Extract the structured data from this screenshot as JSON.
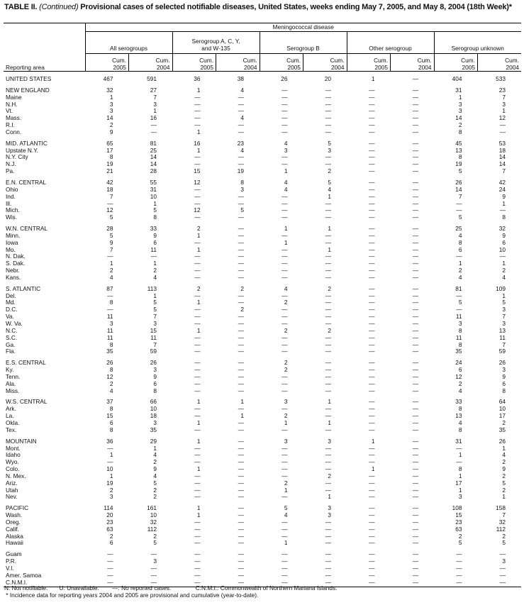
{
  "title": {
    "prefix": "TABLE II. ",
    "continued": "(Continued)",
    "text": " Provisional cases of selected notifiable diseases, United States, weeks ending May 7, 2005, and May 8, 2004 (18th Week)*"
  },
  "header": {
    "disease": "Meningococcal disease",
    "reporting_area": "Reporting area",
    "groups": [
      "All serogroups",
      "Serogroup A, C, Y, and W-135",
      "Serogroup B",
      "Other serogroup",
      "Serogroup unknown"
    ],
    "cum_labels": [
      "Cum. 2005",
      "Cum. 2004"
    ]
  },
  "sections": [
    [
      [
        "UNITED STATES",
        "467",
        "591",
        "36",
        "38",
        "26",
        "20",
        "1",
        "—",
        "404",
        "533"
      ]
    ],
    [
      [
        "NEW ENGLAND",
        "32",
        "27",
        "1",
        "4",
        "—",
        "—",
        "—",
        "—",
        "31",
        "23"
      ],
      [
        "Maine",
        "1",
        "7",
        "—",
        "—",
        "—",
        "—",
        "—",
        "—",
        "1",
        "7"
      ],
      [
        "N.H.",
        "3",
        "3",
        "—",
        "—",
        "—",
        "—",
        "—",
        "—",
        "3",
        "3"
      ],
      [
        "Vt.",
        "3",
        "1",
        "—",
        "—",
        "—",
        "—",
        "—",
        "—",
        "3",
        "1"
      ],
      [
        "Mass.",
        "14",
        "16",
        "—",
        "4",
        "—",
        "—",
        "—",
        "—",
        "14",
        "12"
      ],
      [
        "R.I.",
        "2",
        "—",
        "—",
        "—",
        "—",
        "—",
        "—",
        "—",
        "2",
        "—"
      ],
      [
        "Conn.",
        "9",
        "—",
        "1",
        "—",
        "—",
        "—",
        "—",
        "—",
        "8",
        "—"
      ]
    ],
    [
      [
        "MID. ATLANTIC",
        "65",
        "81",
        "16",
        "23",
        "4",
        "5",
        "—",
        "—",
        "45",
        "53"
      ],
      [
        "Upstate N.Y.",
        "17",
        "25",
        "1",
        "4",
        "3",
        "3",
        "—",
        "—",
        "13",
        "18"
      ],
      [
        "N.Y. City",
        "8",
        "14",
        "—",
        "—",
        "—",
        "—",
        "—",
        "—",
        "8",
        "14"
      ],
      [
        "N.J.",
        "19",
        "14",
        "—",
        "—",
        "—",
        "—",
        "—",
        "—",
        "19",
        "14"
      ],
      [
        "Pa.",
        "21",
        "28",
        "15",
        "19",
        "1",
        "2",
        "—",
        "—",
        "5",
        "7"
      ]
    ],
    [
      [
        "E.N. CENTRAL",
        "42",
        "55",
        "12",
        "8",
        "4",
        "5",
        "—",
        "—",
        "26",
        "42"
      ],
      [
        "Ohio",
        "18",
        "31",
        "—",
        "3",
        "4",
        "4",
        "—",
        "—",
        "14",
        "24"
      ],
      [
        "Ind.",
        "7",
        "10",
        "—",
        "—",
        "—",
        "1",
        "—",
        "—",
        "7",
        "9"
      ],
      [
        "Ill.",
        "—",
        "1",
        "—",
        "—",
        "—",
        "—",
        "—",
        "—",
        "—",
        "1"
      ],
      [
        "Mich.",
        "12",
        "5",
        "12",
        "5",
        "—",
        "—",
        "—",
        "—",
        "—",
        "—"
      ],
      [
        "Wis.",
        "5",
        "8",
        "—",
        "—",
        "—",
        "—",
        "—",
        "—",
        "5",
        "8"
      ]
    ],
    [
      [
        "W.N. CENTRAL",
        "28",
        "33",
        "2",
        "—",
        "1",
        "1",
        "—",
        "—",
        "25",
        "32"
      ],
      [
        "Minn.",
        "5",
        "9",
        "1",
        "—",
        "—",
        "—",
        "—",
        "—",
        "4",
        "9"
      ],
      [
        "Iowa",
        "9",
        "6",
        "—",
        "—",
        "1",
        "—",
        "—",
        "—",
        "8",
        "6"
      ],
      [
        "Mo.",
        "7",
        "11",
        "1",
        "—",
        "—",
        "1",
        "—",
        "—",
        "6",
        "10"
      ],
      [
        "N. Dak.",
        "—",
        "—",
        "—",
        "—",
        "—",
        "—",
        "—",
        "—",
        "—",
        "—"
      ],
      [
        "S. Dak.",
        "1",
        "1",
        "—",
        "—",
        "—",
        "—",
        "—",
        "—",
        "1",
        "1"
      ],
      [
        "Nebr.",
        "2",
        "2",
        "—",
        "—",
        "—",
        "—",
        "—",
        "—",
        "2",
        "2"
      ],
      [
        "Kans.",
        "4",
        "4",
        "—",
        "—",
        "—",
        "—",
        "—",
        "—",
        "4",
        "4"
      ]
    ],
    [
      [
        "S. ATLANTIC",
        "87",
        "113",
        "2",
        "2",
        "4",
        "2",
        "—",
        "—",
        "81",
        "109"
      ],
      [
        "Del.",
        "—",
        "1",
        "—",
        "—",
        "—",
        "—",
        "—",
        "—",
        "—",
        "1"
      ],
      [
        "Md.",
        "8",
        "5",
        "1",
        "—",
        "2",
        "—",
        "—",
        "—",
        "5",
        "5"
      ],
      [
        "D.C.",
        "—",
        "5",
        "—",
        "2",
        "—",
        "—",
        "—",
        "—",
        "—",
        "3"
      ],
      [
        "Va.",
        "11",
        "7",
        "—",
        "—",
        "—",
        "—",
        "—",
        "—",
        "11",
        "7"
      ],
      [
        "W. Va.",
        "3",
        "3",
        "—",
        "—",
        "—",
        "—",
        "—",
        "—",
        "3",
        "3"
      ],
      [
        "N.C.",
        "11",
        "15",
        "1",
        "—",
        "2",
        "2",
        "—",
        "—",
        "8",
        "13"
      ],
      [
        "S.C.",
        "11",
        "11",
        "—",
        "—",
        "—",
        "—",
        "—",
        "—",
        "11",
        "11"
      ],
      [
        "Ga.",
        "8",
        "7",
        "—",
        "—",
        "—",
        "—",
        "—",
        "—",
        "8",
        "7"
      ],
      [
        "Fla.",
        "35",
        "59",
        "—",
        "—",
        "—",
        "—",
        "—",
        "—",
        "35",
        "59"
      ]
    ],
    [
      [
        "E.S. CENTRAL",
        "26",
        "26",
        "—",
        "—",
        "2",
        "—",
        "—",
        "—",
        "24",
        "26"
      ],
      [
        "Ky.",
        "8",
        "3",
        "—",
        "—",
        "2",
        "—",
        "—",
        "—",
        "6",
        "3"
      ],
      [
        "Tenn.",
        "12",
        "9",
        "—",
        "—",
        "—",
        "—",
        "—",
        "—",
        "12",
        "9"
      ],
      [
        "Ala.",
        "2",
        "6",
        "—",
        "—",
        "—",
        "—",
        "—",
        "—",
        "2",
        "6"
      ],
      [
        "Miss.",
        "4",
        "8",
        "—",
        "—",
        "—",
        "—",
        "—",
        "—",
        "4",
        "8"
      ]
    ],
    [
      [
        "W.S. CENTRAL",
        "37",
        "66",
        "1",
        "1",
        "3",
        "1",
        "—",
        "—",
        "33",
        "64"
      ],
      [
        "Ark.",
        "8",
        "10",
        "—",
        "—",
        "—",
        "—",
        "—",
        "—",
        "8",
        "10"
      ],
      [
        "La.",
        "15",
        "18",
        "—",
        "1",
        "2",
        "—",
        "—",
        "—",
        "13",
        "17"
      ],
      [
        "Okla.",
        "6",
        "3",
        "1",
        "—",
        "1",
        "1",
        "—",
        "—",
        "4",
        "2"
      ],
      [
        "Tex.",
        "8",
        "35",
        "—",
        "—",
        "—",
        "—",
        "—",
        "—",
        "8",
        "35"
      ]
    ],
    [
      [
        "MOUNTAIN",
        "36",
        "29",
        "1",
        "—",
        "3",
        "3",
        "1",
        "—",
        "31",
        "26"
      ],
      [
        "Mont.",
        "—",
        "1",
        "—",
        "—",
        "—",
        "—",
        "—",
        "—",
        "—",
        "1"
      ],
      [
        "Idaho",
        "1",
        "4",
        "—",
        "—",
        "—",
        "—",
        "—",
        "—",
        "1",
        "4"
      ],
      [
        "Wyo.",
        "—",
        "2",
        "—",
        "—",
        "—",
        "—",
        "—",
        "—",
        "—",
        "2"
      ],
      [
        "Colo.",
        "10",
        "9",
        "1",
        "—",
        "—",
        "—",
        "1",
        "—",
        "8",
        "9"
      ],
      [
        "N. Mex.",
        "1",
        "4",
        "—",
        "—",
        "—",
        "2",
        "—",
        "—",
        "1",
        "2"
      ],
      [
        "Ariz.",
        "19",
        "5",
        "—",
        "—",
        "2",
        "—",
        "—",
        "—",
        "17",
        "5"
      ],
      [
        "Utah",
        "2",
        "2",
        "—",
        "—",
        "1",
        "—",
        "—",
        "—",
        "1",
        "2"
      ],
      [
        "Nev.",
        "3",
        "2",
        "—",
        "—",
        "—",
        "1",
        "—",
        "—",
        "3",
        "1"
      ]
    ],
    [
      [
        "PACIFIC",
        "114",
        "161",
        "1",
        "—",
        "5",
        "3",
        "—",
        "—",
        "108",
        "158"
      ],
      [
        "Wash.",
        "20",
        "10",
        "1",
        "—",
        "4",
        "3",
        "—",
        "—",
        "15",
        "7"
      ],
      [
        "Oreg.",
        "23",
        "32",
        "—",
        "—",
        "—",
        "—",
        "—",
        "—",
        "23",
        "32"
      ],
      [
        "Calif.",
        "63",
        "112",
        "—",
        "—",
        "—",
        "—",
        "—",
        "—",
        "63",
        "112"
      ],
      [
        "Alaska",
        "2",
        "2",
        "—",
        "—",
        "—",
        "—",
        "—",
        "—",
        "2",
        "2"
      ],
      [
        "Hawaii",
        "6",
        "5",
        "—",
        "—",
        "1",
        "—",
        "—",
        "—",
        "5",
        "5"
      ]
    ],
    [
      [
        "Guam",
        "—",
        "—",
        "—",
        "—",
        "—",
        "—",
        "—",
        "—",
        "—",
        "—"
      ],
      [
        "P.R.",
        "—",
        "3",
        "—",
        "—",
        "—",
        "—",
        "—",
        "—",
        "—",
        "3"
      ],
      [
        "V.I.",
        "—",
        "—",
        "—",
        "—",
        "—",
        "—",
        "—",
        "—",
        "—",
        "—"
      ],
      [
        "Amer. Samoa",
        "—",
        "—",
        "—",
        "—",
        "—",
        "—",
        "—",
        "—",
        "—",
        "—"
      ],
      [
        "C.N.M.I.",
        "—",
        "—",
        "—",
        "—",
        "—",
        "—",
        "—",
        "—",
        "—",
        "—"
      ]
    ]
  ],
  "footnotes": {
    "legend": "N: Not notifiable.       U: Unavailable.        —: No reported cases.               C.N.M.I.: Commonwealth of Northern Mariana Islands.",
    "note": " * Incidence data for reporting years 2004 and 2005 are provisional and cumulative (year-to-date)."
  }
}
